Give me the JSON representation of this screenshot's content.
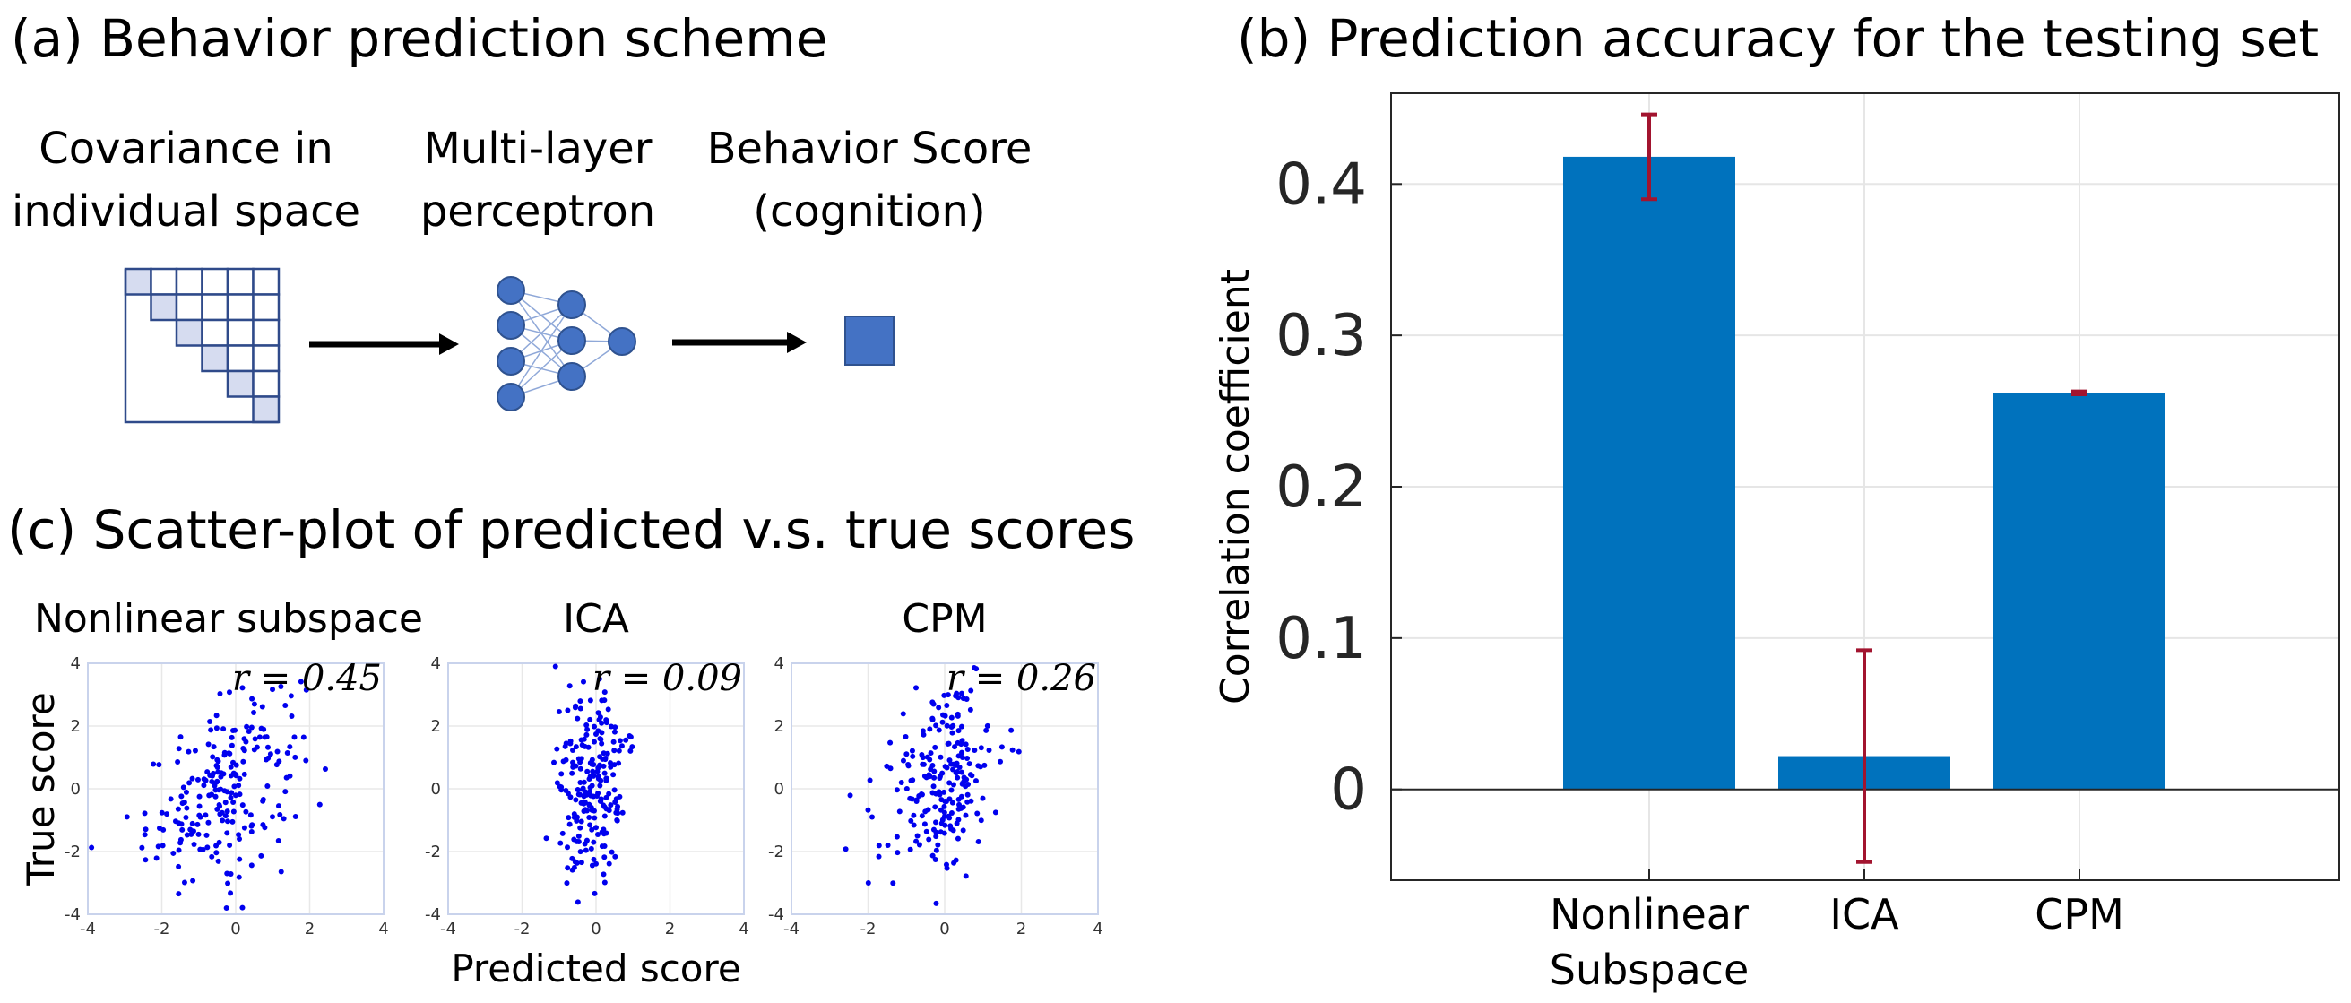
{
  "panel_a": {
    "title": "(a) Behavior prediction scheme",
    "label_cov_1": "Covariance in",
    "label_cov_2": "individual space",
    "label_mlp_1": "Multi-layer",
    "label_mlp_2": "perceptron",
    "label_beh_1": "Behavior Score",
    "label_beh_2": "(cognition)"
  },
  "panel_b_title": "(b) Prediction accuracy for the testing set",
  "panel_c_title": "(c) Scatter-plot of predicted v.s. true scores",
  "colors": {
    "bar": "#0072BD",
    "errorbar": "#A2142F",
    "scatter": "#0000EE",
    "node": "#4472C4",
    "matrix_fill": "#D6DCF0"
  },
  "chart_data": [
    {
      "type": "bar",
      "title": "(b) Prediction accuracy for the testing set",
      "xlabel": "",
      "ylabel": "Correlation coefficient",
      "categories": [
        "Nonlinear Subspace",
        "ICA",
        "CPM"
      ],
      "category_lines": [
        [
          "Nonlinear",
          "Subspace"
        ],
        [
          "ICA"
        ],
        [
          "CPM"
        ]
      ],
      "values": [
        0.418,
        0.022,
        0.262
      ],
      "error_low": [
        0.39,
        -0.048,
        0.261
      ],
      "error_high": [
        0.446,
        0.092,
        0.263
      ],
      "ylim": [
        -0.06,
        0.46
      ],
      "yticks": [
        0,
        0.1,
        0.2,
        0.3,
        0.4
      ],
      "ytick_labels": [
        "0",
        "0.1",
        "0.2",
        "0.3",
        "0.4"
      ],
      "grid": true
    },
    {
      "type": "scatter",
      "title": "Nonlinear subspace",
      "annotation": "r = 0.45",
      "r": 0.45,
      "xlabel": "",
      "ylabel": "True score",
      "xlim": [
        -4,
        4
      ],
      "ylim": [
        -4,
        4
      ],
      "xticks": [
        -4,
        -2,
        0,
        2,
        4
      ],
      "yticks": [
        4,
        2,
        0,
        -2,
        -4
      ],
      "n_points": 220
    },
    {
      "type": "scatter",
      "title": "ICA",
      "annotation": "r = 0.09",
      "r": 0.09,
      "xlabel": "Predicted score",
      "ylabel": "",
      "xlim": [
        -4,
        4
      ],
      "ylim": [
        -4,
        4
      ],
      "xticks": [
        -4,
        -2,
        0,
        2,
        4
      ],
      "yticks": [
        4,
        2,
        0,
        -2,
        -4
      ],
      "n_points": 220
    },
    {
      "type": "scatter",
      "title": "CPM",
      "annotation": "r = 0.26",
      "r": 0.26,
      "xlabel": "",
      "ylabel": "",
      "xlim": [
        -4,
        4
      ],
      "ylim": [
        -4,
        4
      ],
      "xticks": [
        -4,
        -2,
        0,
        2,
        4
      ],
      "yticks": [
        4,
        2,
        0,
        -2,
        -4
      ],
      "n_points": 220
    }
  ]
}
